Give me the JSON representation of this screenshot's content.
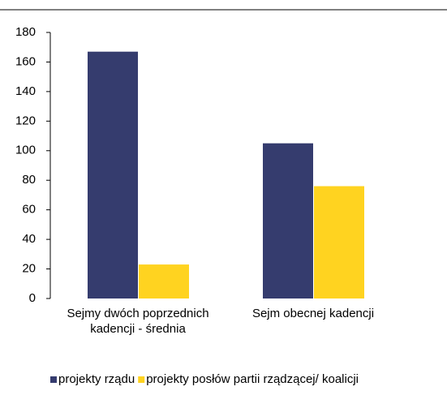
{
  "chart_data": {
    "type": "bar",
    "categories": [
      "Sejmy dwóch poprzednich kadencji - średnia",
      "Sejm obecnej kadencji"
    ],
    "series": [
      {
        "name": "projekty rządu",
        "color": "#353c6e",
        "values": [
          167,
          105
        ]
      },
      {
        "name": "projekty posłów partii rządzącej/ koalicji",
        "color": "#ffd320",
        "values": [
          23,
          76
        ]
      }
    ],
    "ylim": [
      0,
      180
    ],
    "yticks": [
      0,
      20,
      40,
      60,
      80,
      100,
      120,
      140,
      160,
      180
    ],
    "grid": false
  }
}
